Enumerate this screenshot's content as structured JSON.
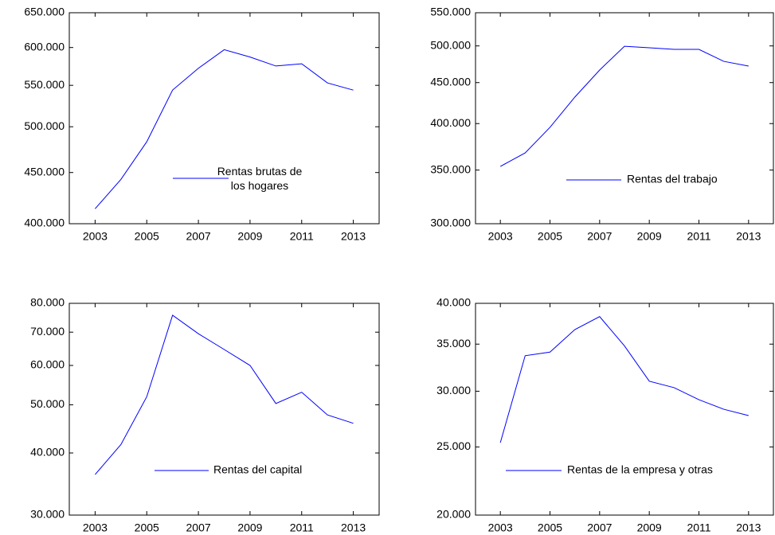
{
  "chart_data": [
    {
      "type": "line",
      "yscale": "log",
      "x": [
        2003,
        2004,
        2005,
        2006,
        2007,
        2008,
        2009,
        2010,
        2011,
        2012,
        2013
      ],
      "series": [
        {
          "name": "Rentas brutas de los hogares",
          "color": "#0000ff",
          "values": [
            414000,
            443000,
            483000,
            544000,
            572000,
            597000,
            587000,
            575000,
            578000,
            553000,
            544000
          ]
        }
      ],
      "xlim": [
        2002,
        2014
      ],
      "xticks": [
        2003,
        2005,
        2007,
        2009,
        2011,
        2013
      ],
      "ylim": [
        400000,
        650000
      ],
      "yticks": [
        {
          "value": 400000,
          "label": "400.000"
        },
        {
          "value": 450000,
          "label": "450.000"
        },
        {
          "value": 500000,
          "label": "500.000"
        },
        {
          "value": 550000,
          "label": "550.000"
        },
        {
          "value": 600000,
          "label": "600.000"
        },
        {
          "value": 650000,
          "label": "650.000"
        }
      ]
    },
    {
      "type": "line",
      "yscale": "log",
      "x": [
        2003,
        2004,
        2005,
        2006,
        2007,
        2008,
        2009,
        2010,
        2011,
        2012,
        2013
      ],
      "series": [
        {
          "name": "Rentas del trabajo",
          "color": "#0000ff",
          "values": [
            353700,
            367700,
            395700,
            431600,
            466500,
            499500,
            497300,
            495000,
            495000,
            478300,
            471800
          ]
        }
      ],
      "xlim": [
        2002,
        2014
      ],
      "xticks": [
        2003,
        2005,
        2007,
        2009,
        2011,
        2013
      ],
      "ylim": [
        300000,
        550000
      ],
      "yticks": [
        {
          "value": 300000,
          "label": "300.000"
        },
        {
          "value": 350000,
          "label": "350.000"
        },
        {
          "value": 400000,
          "label": "400.000"
        },
        {
          "value": 450000,
          "label": "450.000"
        },
        {
          "value": 500000,
          "label": "500.000"
        },
        {
          "value": 550000,
          "label": "550.000"
        }
      ]
    },
    {
      "type": "line",
      "yscale": "log",
      "x": [
        2003,
        2004,
        2005,
        2006,
        2007,
        2008,
        2009,
        2010,
        2011,
        2012,
        2013
      ],
      "series": [
        {
          "name": "Rentas del capital",
          "color": "#0000ff",
          "values": [
            36200,
            41600,
            51900,
            75700,
            69500,
            64600,
            60000,
            50300,
            53000,
            47700,
            45900
          ]
        }
      ],
      "xlim": [
        2002,
        2014
      ],
      "xticks": [
        2003,
        2005,
        2007,
        2009,
        2011,
        2013
      ],
      "ylim": [
        30000,
        80000
      ],
      "yticks": [
        {
          "value": 30000,
          "label": "30.000"
        },
        {
          "value": 40000,
          "label": "40.000"
        },
        {
          "value": 50000,
          "label": "50.000"
        },
        {
          "value": 60000,
          "label": "60.000"
        },
        {
          "value": 70000,
          "label": "70.000"
        },
        {
          "value": 80000,
          "label": "80.000"
        }
      ]
    },
    {
      "type": "line",
      "yscale": "log",
      "x": [
        2003,
        2004,
        2005,
        2006,
        2007,
        2008,
        2009,
        2010,
        2011,
        2012,
        2013
      ],
      "series": [
        {
          "name": "Rentas de la empresa y otras",
          "color": "#0000ff",
          "values": [
            25350,
            33700,
            34100,
            36700,
            38300,
            34800,
            31000,
            30350,
            29180,
            28280,
            27700
          ]
        }
      ],
      "xlim": [
        2002,
        2014
      ],
      "xticks": [
        2003,
        2005,
        2007,
        2009,
        2011,
        2013
      ],
      "ylim": [
        20000,
        40000
      ],
      "yticks": [
        {
          "value": 20000,
          "label": "20.000"
        },
        {
          "value": 25000,
          "label": "25.000"
        },
        {
          "value": 30000,
          "label": "30.000"
        },
        {
          "value": 35000,
          "label": "35.000"
        },
        {
          "value": 40000,
          "label": "40.000"
        }
      ]
    }
  ]
}
